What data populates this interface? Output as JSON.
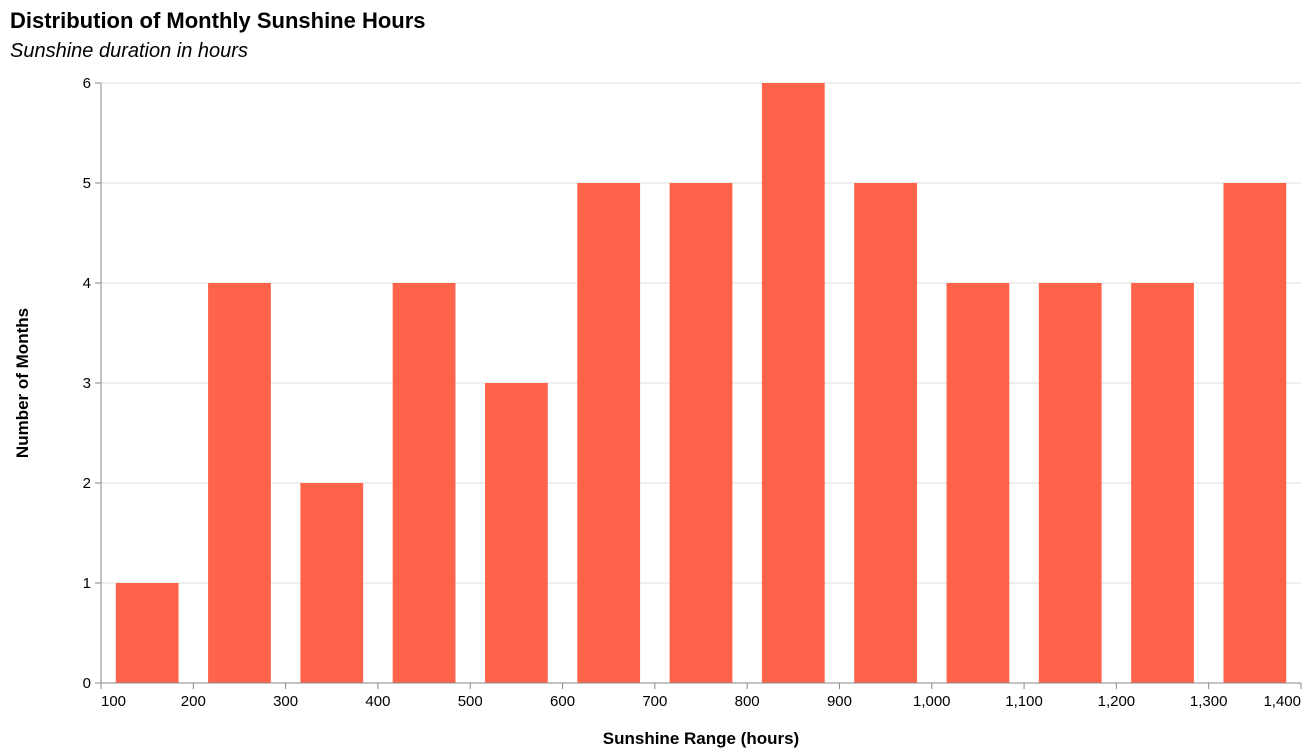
{
  "chart_data": {
    "type": "bar",
    "title": "Distribution of Monthly Sunshine Hours",
    "subtitle": "Sunshine duration in hours",
    "xlabel": "Sunshine Range (hours)",
    "ylabel": "Number of Months",
    "xlim": [
      100,
      1400
    ],
    "ylim": [
      0,
      6
    ],
    "x_ticks": [
      "100",
      "200",
      "300",
      "400",
      "500",
      "600",
      "700",
      "800",
      "900",
      "1,000",
      "1,100",
      "1,200",
      "1,300",
      "1,400"
    ],
    "y_ticks": [
      "0",
      "1",
      "2",
      "3",
      "4",
      "5",
      "6"
    ],
    "bins": [
      {
        "start": 100,
        "end": 200,
        "count": 1
      },
      {
        "start": 200,
        "end": 300,
        "count": 4
      },
      {
        "start": 300,
        "end": 400,
        "count": 2
      },
      {
        "start": 400,
        "end": 500,
        "count": 4
      },
      {
        "start": 500,
        "end": 600,
        "count": 3
      },
      {
        "start": 600,
        "end": 700,
        "count": 5
      },
      {
        "start": 700,
        "end": 800,
        "count": 5
      },
      {
        "start": 800,
        "end": 900,
        "count": 6
      },
      {
        "start": 900,
        "end": 1000,
        "count": 5
      },
      {
        "start": 1000,
        "end": 1100,
        "count": 4
      },
      {
        "start": 1100,
        "end": 1200,
        "count": 4
      },
      {
        "start": 1200,
        "end": 1300,
        "count": 4
      },
      {
        "start": 1300,
        "end": 1400,
        "count": 5
      }
    ],
    "bar_color": "#ff634a",
    "grid_color": "#dddddd",
    "axis_color": "#888888",
    "grid": true
  }
}
